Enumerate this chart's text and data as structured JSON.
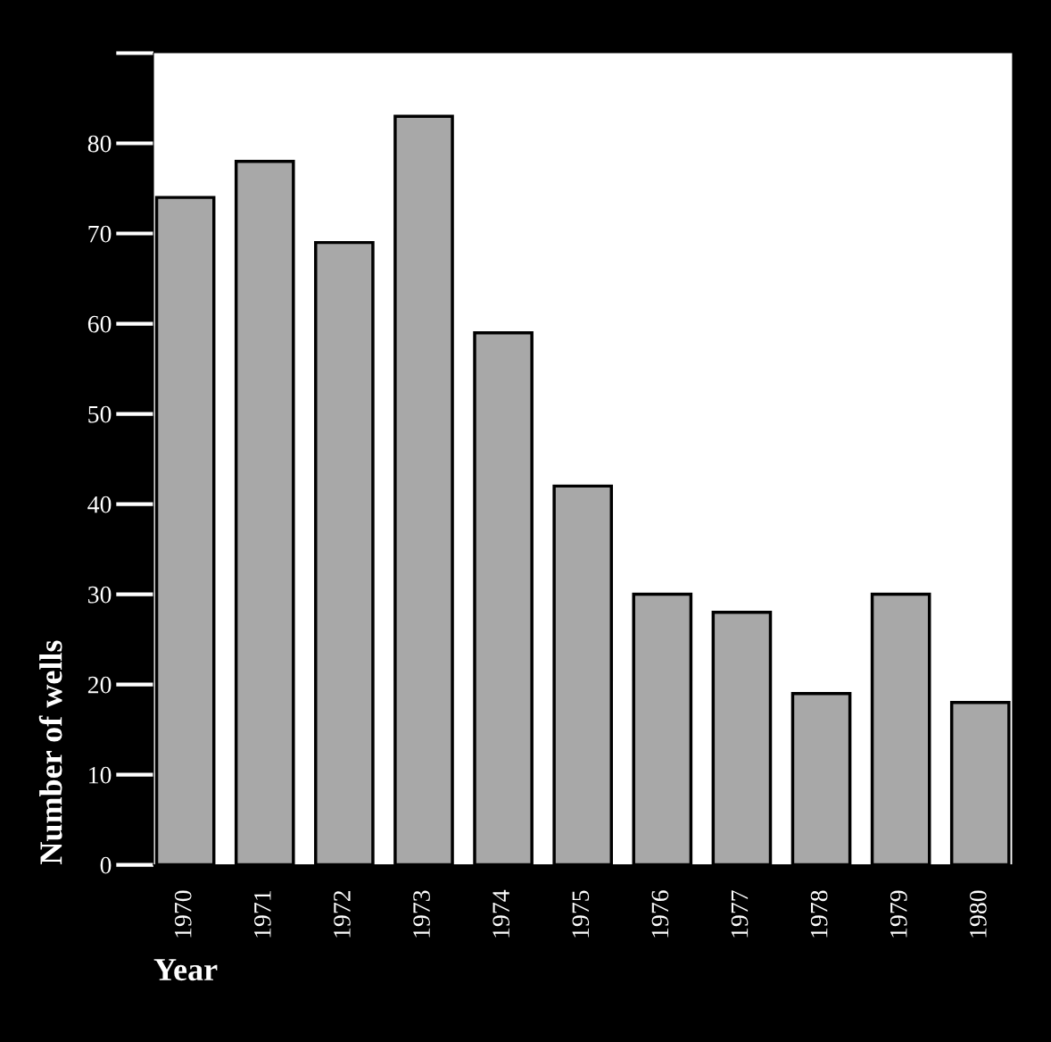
{
  "chart_data": {
    "type": "bar",
    "xlabel": "Year",
    "ylabel": "Number of wells",
    "categories": [
      "1970",
      "1971",
      "1972",
      "1973",
      "1974",
      "1975",
      "1976",
      "1977",
      "1978",
      "1979",
      "1980"
    ],
    "values": [
      74,
      78,
      69,
      83,
      59,
      42,
      30,
      28,
      19,
      30,
      18
    ],
    "color": "#a8a8a8",
    "ylim": [
      0,
      90
    ],
    "yticks": [
      0,
      10,
      20,
      30,
      40,
      50,
      60,
      70,
      80,
      {
        "value": 90,
        "label": null
      }
    ],
    "grid": false,
    "legend": false
  }
}
